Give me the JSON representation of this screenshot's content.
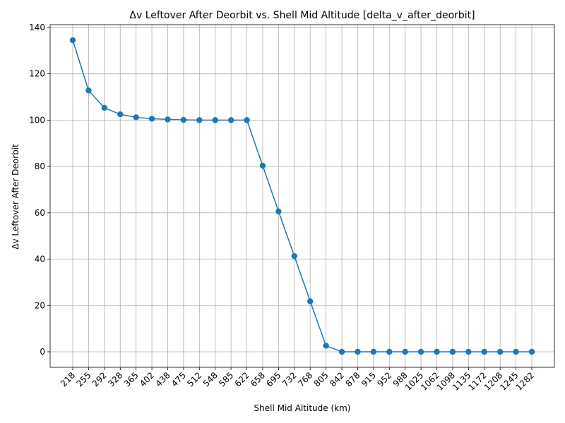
{
  "chart_data": {
    "type": "line",
    "title": "Δv Leftover After Deorbit vs. Shell Mid Altitude [delta_v_after_deorbit]",
    "xlabel": "Shell Mid Altitude (km)",
    "ylabel": "Δv Leftover After Deorbit",
    "categories": [
      "218",
      "255",
      "292",
      "328",
      "365",
      "402",
      "438",
      "475",
      "512",
      "548",
      "585",
      "622",
      "658",
      "695",
      "732",
      "768",
      "805",
      "842",
      "878",
      "915",
      "952",
      "988",
      "1025",
      "1062",
      "1098",
      "1135",
      "1172",
      "1208",
      "1245",
      "1282"
    ],
    "series": [
      {
        "values": [
          134.5,
          112.8,
          105.3,
          102.5,
          101.2,
          100.6,
          100.3,
          100.1,
          100.0,
          100.0,
          100.0,
          100.0,
          80.3,
          60.6,
          41.3,
          21.8,
          2.6,
          0,
          0,
          0,
          0,
          0,
          0,
          0,
          0,
          0,
          0,
          0,
          0,
          0
        ],
        "color": "#1f77b4",
        "marker": "circle"
      }
    ],
    "yticks": [
      0,
      20,
      40,
      60,
      80,
      100,
      120,
      140
    ],
    "ylim": [
      -6.7,
      141.2
    ],
    "grid": true,
    "legend": "none"
  }
}
